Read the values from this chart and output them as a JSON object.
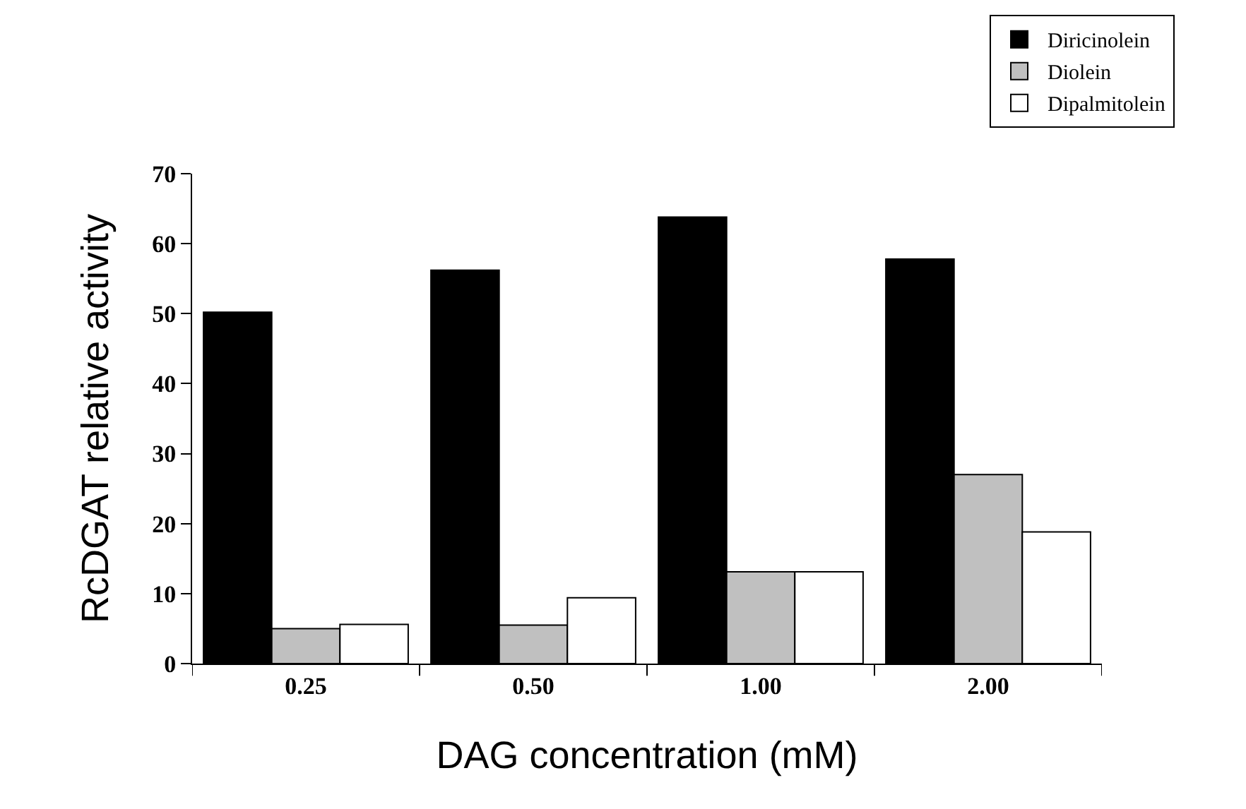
{
  "chart_data": {
    "type": "bar",
    "xlabel": "DAG concentration (mM)",
    "ylabel": "RcDGAT relative activity",
    "categories": [
      "0.25",
      "0.50",
      "1.00",
      "2.00"
    ],
    "series": [
      {
        "name": "Diricinolein",
        "color": "#000000",
        "values": [
          50.2,
          56.2,
          63.8,
          57.8
        ]
      },
      {
        "name": "Diolein",
        "color": "#c0c0c0",
        "values": [
          5,
          5.5,
          13.1,
          27
        ]
      },
      {
        "name": "Dipalmitolein",
        "color": "#ffffff",
        "values": [
          5.6,
          9.4,
          13.1,
          18.8
        ]
      }
    ],
    "ylim": [
      0,
      70
    ],
    "yticks": [
      0,
      10,
      20,
      30,
      40,
      50,
      60,
      70
    ],
    "grid": false,
    "legend": "top right"
  }
}
